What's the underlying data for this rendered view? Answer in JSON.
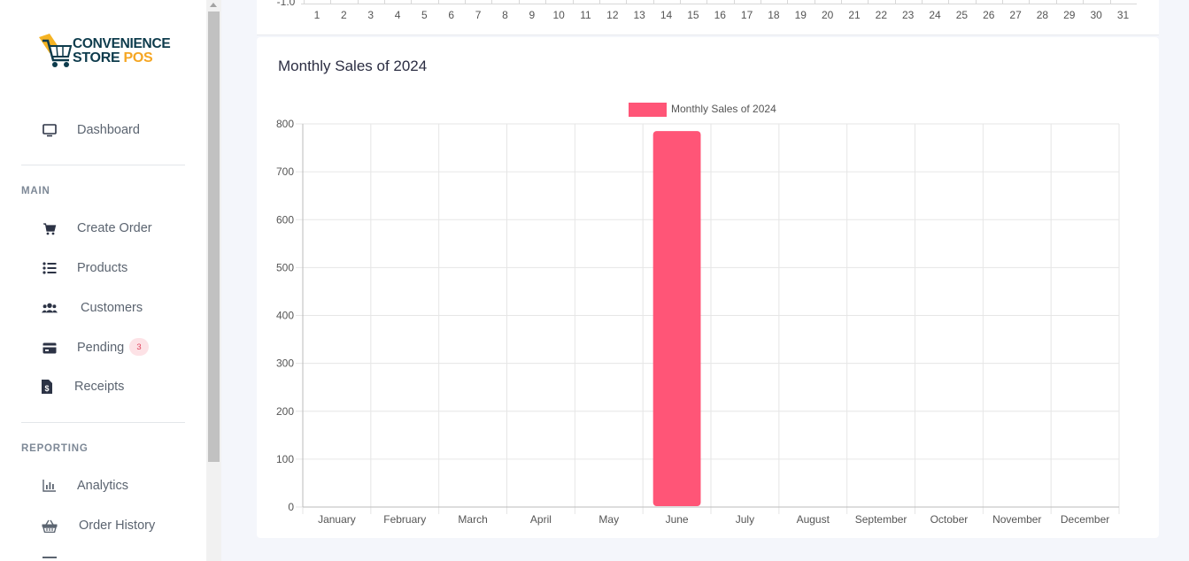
{
  "sidebar": {
    "logo": {
      "line1": "CONVENIENCE",
      "line2a": "STORE ",
      "line2b": "POS"
    },
    "items": [
      {
        "label": "Dashboard",
        "icon": "monitor-icon"
      },
      {
        "label": "Create Order",
        "icon": "cart-icon"
      },
      {
        "label": "Products",
        "icon": "list-icon"
      },
      {
        "label": "Customers",
        "icon": "users-icon"
      },
      {
        "label": "Pending",
        "icon": "card-icon",
        "badge": "3"
      },
      {
        "label": "Receipts",
        "icon": "receipt-icon"
      },
      {
        "label": "Analytics",
        "icon": "bar-chart-icon"
      },
      {
        "label": "Order History",
        "icon": "basket-icon"
      }
    ],
    "sections": {
      "main": "MAIN",
      "reporting": "REPORTING"
    }
  },
  "top_chart": {
    "y_label": "-1.0",
    "x_labels": [
      "1",
      "2",
      "3",
      "4",
      "5",
      "6",
      "7",
      "8",
      "9",
      "10",
      "11",
      "12",
      "13",
      "14",
      "15",
      "16",
      "17",
      "18",
      "19",
      "20",
      "21",
      "22",
      "23",
      "24",
      "25",
      "26",
      "27",
      "28",
      "29",
      "30",
      "31"
    ]
  },
  "card": {
    "title": "Monthly Sales of 2024"
  },
  "chart_data": {
    "type": "bar",
    "title": "",
    "legend": "Monthly Sales of 2024",
    "legend_position": "top",
    "categories": [
      "January",
      "February",
      "March",
      "April",
      "May",
      "June",
      "July",
      "August",
      "September",
      "October",
      "November",
      "December"
    ],
    "series": [
      {
        "name": "Monthly Sales of 2024",
        "values": [
          0,
          0,
          0,
          0,
          0,
          785,
          0,
          0,
          0,
          0,
          0,
          0
        ]
      }
    ],
    "ylim": [
      0,
      800
    ],
    "yticks": [
      0,
      100,
      200,
      300,
      400,
      500,
      600,
      700,
      800
    ],
    "grid": true,
    "color": "#ff5577"
  }
}
